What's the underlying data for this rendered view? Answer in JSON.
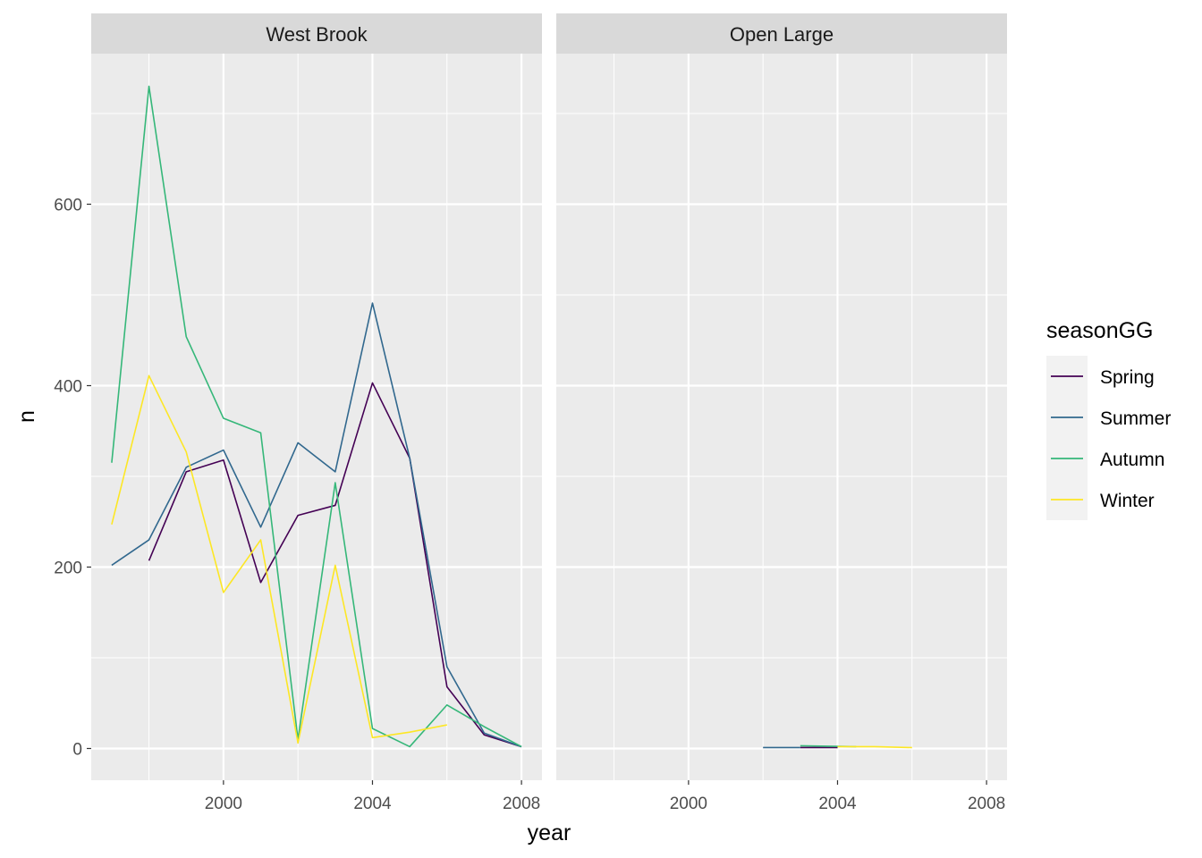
{
  "chart_data": {
    "type": "line",
    "xlabel": "year",
    "ylabel": "n",
    "xlim": [
      1996.45,
      2008.55
    ],
    "ylim": [
      -35,
      766
    ],
    "x_ticks": [
      2000,
      2004,
      2008
    ],
    "x_tick_labels": [
      "2000",
      "2004",
      "2008"
    ],
    "y_ticks": [
      0,
      200,
      400,
      600
    ],
    "y_tick_labels": [
      "0",
      "200",
      "400",
      "600"
    ],
    "grid": true,
    "legend": {
      "title": "seasonGG",
      "placement": "right",
      "entries": [
        "Spring",
        "Summer",
        "Autumn",
        "Winter"
      ]
    },
    "colors": {
      "Spring": "#440154",
      "Summer": "#31688E",
      "Autumn": "#35B779",
      "Winter": "#FDE725"
    },
    "panels": [
      {
        "title": "West Brook",
        "series": [
          {
            "name": "Spring",
            "x": [
              1998,
              1999,
              2000,
              2001,
              2002,
              2003,
              2004,
              2005,
              2006,
              2007,
              2008
            ],
            "y": [
              207,
              305,
              318,
              183,
              257,
              268,
              403,
              320,
              68,
              15,
              2
            ]
          },
          {
            "name": "Summer",
            "x": [
              1997,
              1998,
              1999,
              2000,
              2001,
              2002,
              2003,
              2004,
              2005,
              2006,
              2007,
              2008
            ],
            "y": [
              202,
              230,
              310,
              329,
              244,
              337,
              305,
              491,
              320,
              90,
              17,
              2
            ]
          },
          {
            "name": "Autumn",
            "x": [
              1997,
              1998,
              1999,
              2000,
              2001,
              2002,
              2003,
              2004,
              2005,
              2006,
              2007,
              2008
            ],
            "y": [
              315,
              730,
              454,
              364,
              348,
              10,
              293,
              22,
              2,
              48,
              24,
              2
            ]
          },
          {
            "name": "Winter",
            "x": [
              1997,
              1998,
              1999,
              2000,
              2001,
              2002,
              2003,
              2004,
              2005,
              2006
            ],
            "y": [
              247,
              411,
              327,
              172,
              230,
              6,
              202,
              12,
              18,
              26
            ]
          }
        ]
      },
      {
        "title": "Open Large",
        "series": [
          {
            "name": "Spring",
            "x": [
              2003,
              2004
            ],
            "y": [
              1,
              1
            ]
          },
          {
            "name": "Summer",
            "x": [
              2002,
              2003
            ],
            "y": [
              1,
              1
            ]
          },
          {
            "name": "Autumn",
            "x": [
              2003,
              2004.5
            ],
            "y": [
              3,
              2
            ]
          },
          {
            "name": "Winter",
            "x": [
              2004,
              2005,
              2006
            ],
            "y": [
              2,
              2,
              1
            ]
          }
        ]
      }
    ]
  }
}
